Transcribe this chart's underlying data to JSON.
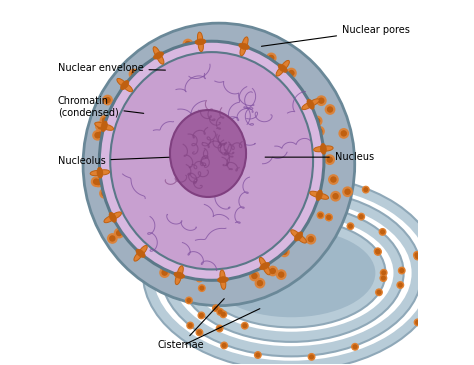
{
  "figsize": [
    4.74,
    3.65
  ],
  "dpi": 100,
  "bg_color": "#ffffff",
  "white": "#ffffff",
  "labels": {
    "nuclear_pores": "Nuclear pores",
    "nuclear_envelope": "Nuclear envelope",
    "chromatin": "Chromatin\n(condensed)",
    "nucleolus": "Nucleolus",
    "nucleus": "Nucleus",
    "cisternae": "Cisternae"
  },
  "colors": {
    "outer_gray": "#8fa8b8",
    "outer_gray_dark": "#6a8898",
    "nucleus_fill": "#c8a0d0",
    "nucleus_inner": "#d8b8e0",
    "nucleolus_fill": "#a060a0",
    "nucleolus_dark": "#804080",
    "envelope_dark": "#5a7888",
    "pore_orange": "#e08030",
    "pore_orange_dark": "#c06010",
    "er_blue": "#a0b8c8",
    "er_blue_light": "#b8ccd8",
    "chromatin_wave": "#8050a0",
    "dot_orange": "#e08030",
    "dot_bg": "#a0b0c0"
  }
}
